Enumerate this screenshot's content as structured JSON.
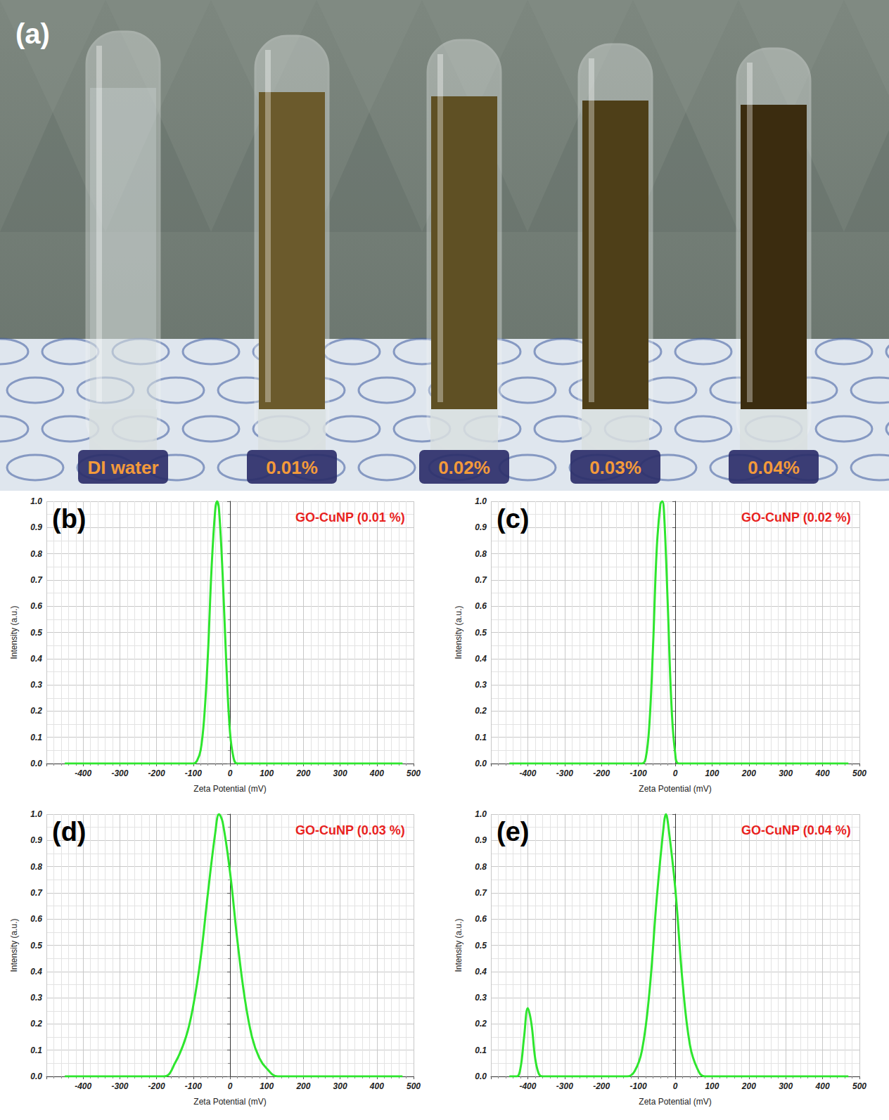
{
  "photo": {
    "panel": "(a)",
    "labels": [
      "DI water",
      "0.01%",
      "0.02%",
      "0.03%",
      "0.04%"
    ]
  },
  "chart_data": [
    {
      "type": "line",
      "panel": "(b)",
      "title": "GO-CuNP (0.01 %)",
      "x_label": "Zeta Potential (mV)",
      "y_label": "Intensity (a.u.)",
      "x": [
        -450,
        -100,
        -90,
        -80,
        -70,
        -60,
        -50,
        -40,
        -35,
        -30,
        -20,
        -10,
        0,
        10,
        20,
        470
      ],
      "values": [
        0,
        0,
        0.01,
        0.05,
        0.18,
        0.42,
        0.75,
        0.97,
        1.0,
        0.97,
        0.72,
        0.38,
        0.12,
        0.02,
        0,
        0
      ],
      "color": "#2ee62e",
      "xlim": [
        -500,
        500
      ],
      "xticks": [
        -400,
        -300,
        -200,
        -100,
        0,
        100,
        200,
        300,
        400,
        500
      ],
      "ylim": [
        0,
        1
      ],
      "yticks": [
        {
          "value": 0,
          "label": "0.0"
        },
        0.1,
        0.2,
        0.3,
        0.4,
        0.5,
        0.6,
        0.7,
        0.8,
        0.9,
        {
          "value": 1,
          "label": "1.0"
        }
      ],
      "grid": true
    },
    {
      "type": "line",
      "panel": "(c)",
      "title": "GO-CuNP (0.02 %)",
      "x_label": "Zeta Potential (mV)",
      "y_label": "Intensity (a.u.)",
      "x": [
        -450,
        -90,
        -80,
        -70,
        -60,
        -50,
        -40,
        -35,
        -30,
        -20,
        -10,
        0,
        10,
        470
      ],
      "values": [
        0,
        0,
        0.02,
        0.15,
        0.45,
        0.82,
        0.99,
        1.0,
        0.95,
        0.6,
        0.22,
        0.04,
        0,
        0
      ],
      "color": "#2ee62e",
      "xlim": [
        -500,
        500
      ],
      "xticks": [
        -400,
        -300,
        -200,
        -100,
        0,
        100,
        200,
        300,
        400,
        500
      ],
      "ylim": [
        0,
        1
      ],
      "yticks": [
        {
          "value": 0,
          "label": "0.0"
        },
        0.1,
        0.2,
        0.3,
        0.4,
        0.5,
        0.6,
        0.7,
        0.8,
        0.9,
        {
          "value": 1,
          "label": "1.0"
        }
      ],
      "grid": true
    },
    {
      "type": "line",
      "panel": "(d)",
      "title": "GO-CuNP (0.03 %)",
      "x_label": "Zeta Potential (mV)",
      "y_label": "Intensity (a.u.)",
      "x": [
        -450,
        -180,
        -150,
        -120,
        -100,
        -80,
        -60,
        -40,
        -30,
        -20,
        0,
        20,
        40,
        60,
        80,
        100,
        130,
        470
      ],
      "values": [
        0,
        0,
        0.05,
        0.15,
        0.27,
        0.45,
        0.7,
        0.93,
        1.0,
        0.97,
        0.78,
        0.52,
        0.3,
        0.15,
        0.07,
        0.03,
        0,
        0
      ],
      "color": "#2ee62e",
      "xlim": [
        -500,
        500
      ],
      "xticks": [
        -400,
        -300,
        -200,
        -100,
        0,
        100,
        200,
        300,
        400,
        500
      ],
      "ylim": [
        0,
        1
      ],
      "yticks": [
        {
          "value": 0,
          "label": "0.0"
        },
        0.1,
        0.2,
        0.3,
        0.4,
        0.5,
        0.6,
        0.7,
        0.8,
        0.9,
        {
          "value": 1,
          "label": "1.0"
        }
      ],
      "grid": true
    },
    {
      "type": "line",
      "panel": "(e)",
      "title": "GO-CuNP (0.04 %)",
      "x_label": "Zeta Potential (mV)",
      "y_label": "Intensity (a.u.)",
      "x": [
        -450,
        -430,
        -420,
        -410,
        -400,
        -390,
        -380,
        -370,
        -360,
        -130,
        -110,
        -90,
        -70,
        -50,
        -30,
        -25,
        -20,
        0,
        20,
        40,
        60,
        80,
        470
      ],
      "values": [
        0,
        0,
        0.03,
        0.15,
        0.26,
        0.2,
        0.07,
        0.01,
        0,
        0,
        0.02,
        0.1,
        0.32,
        0.68,
        0.97,
        1.0,
        0.97,
        0.72,
        0.36,
        0.12,
        0.03,
        0,
        0
      ],
      "color": "#2ee62e",
      "xlim": [
        -500,
        500
      ],
      "xticks": [
        -400,
        -300,
        -200,
        -100,
        0,
        100,
        200,
        300,
        400,
        500
      ],
      "ylim": [
        0,
        1
      ],
      "yticks": [
        {
          "value": 0,
          "label": "0.0"
        },
        0.1,
        0.2,
        0.3,
        0.4,
        0.5,
        0.6,
        0.7,
        0.8,
        0.9,
        {
          "value": 1,
          "label": "1.0"
        }
      ],
      "grid": true
    }
  ]
}
